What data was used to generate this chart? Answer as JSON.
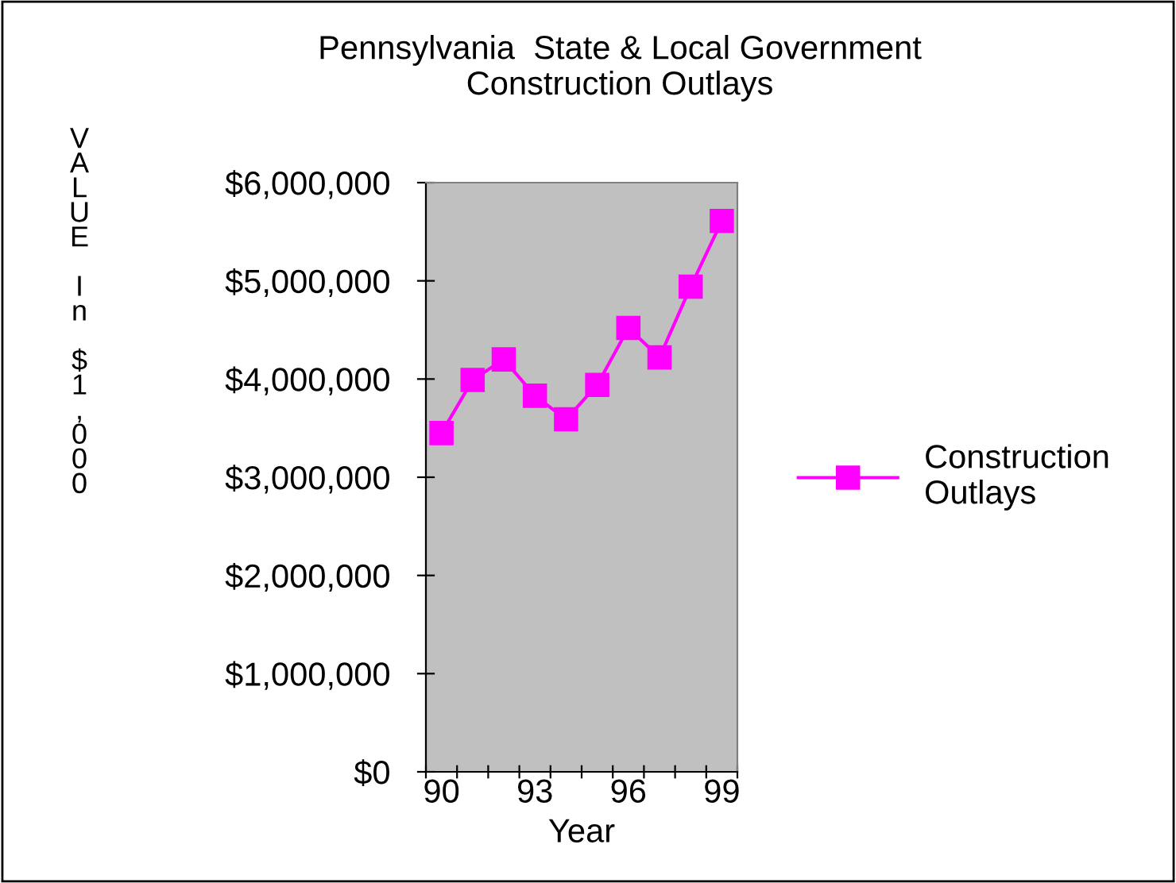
{
  "chart_data": {
    "type": "line",
    "title": "Pennsylvania  State & Local Government\nConstruction Outlays",
    "xlabel": "Year",
    "ylabel": "VALUE  In  $1,000",
    "categories": [
      "90",
      null,
      null,
      "93",
      null,
      null,
      "96",
      null,
      null,
      "99"
    ],
    "series": [
      {
        "name": "Construction Outlays",
        "color": "#ff00ff",
        "values": [
          3450000,
          3990000,
          4200000,
          3830000,
          3590000,
          3940000,
          4520000,
          4220000,
          4940000,
          5610000
        ]
      }
    ],
    "ylim": [
      0,
      6000000
    ],
    "yticks": [
      {
        "value": 0,
        "label": "$0"
      },
      {
        "value": 1000000,
        "label": "$1,000,000"
      },
      {
        "value": 2000000,
        "label": "$2,000,000"
      },
      {
        "value": 3000000,
        "label": "$3,000,000"
      },
      {
        "value": 4000000,
        "label": "$4,000,000"
      },
      {
        "value": 5000000,
        "label": "$5,000,000"
      },
      {
        "value": 6000000,
        "label": "$6,000,000"
      }
    ],
    "grid": false,
    "legend": "right",
    "marker": "square",
    "line_style": "solid"
  }
}
